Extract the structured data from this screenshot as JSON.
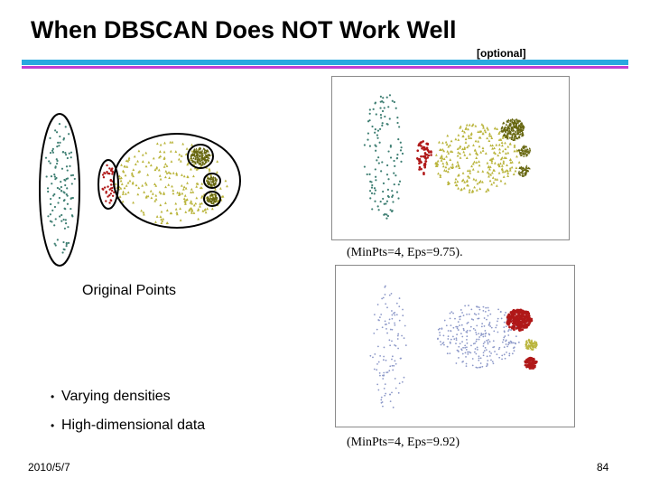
{
  "slide": {
    "title": "When DBSCAN Does NOT Work Well",
    "tag": "[optional]",
    "original_label": "Original Points",
    "caption_top": "(MinPts=4, Eps=9.75).",
    "caption_bottom": "(MinPts=4, Eps=9.92)",
    "bullets": [
      "Varying densities",
      "High-dimensional data"
    ],
    "date": "2010/5/7",
    "page_number": "84"
  },
  "colors": {
    "teal": "#3f7f73",
    "olive": "#b9b43a",
    "red": "#b01818",
    "blue": "#8c98c8",
    "dark_olive": "#66660f"
  }
}
